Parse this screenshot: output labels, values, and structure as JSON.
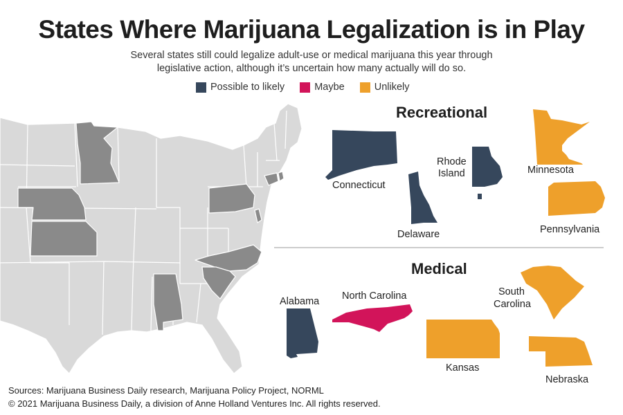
{
  "title": "States Where Marijuana Legalization is in Play",
  "subtitle_line1": "Several states still could legalize adult-use or medical marijuana this year through",
  "subtitle_line2": "legislative action, although it’s uncertain how many actually will do so.",
  "legend": [
    {
      "label": "Possible to likely",
      "color": "#36475c"
    },
    {
      "label": "Maybe",
      "color": "#d2145a"
    },
    {
      "label": "Unlikely",
      "color": "#eea02b"
    }
  ],
  "map_colors": {
    "base": "#d9d9d9",
    "highlight": "#8a8a8a",
    "border": "#ffffff"
  },
  "sections": {
    "recreational": "Recreational",
    "medical": "Medical"
  },
  "recreational_states": [
    {
      "name": "Connecticut",
      "status": "Possible to likely"
    },
    {
      "name": "Delaware",
      "status": "Possible to likely"
    },
    {
      "name": "Rhode Island",
      "line1": "Rhode",
      "line2": "Island",
      "status": "Possible to likely"
    },
    {
      "name": "Minnesota",
      "status": "Unlikely"
    },
    {
      "name": "Pennsylvania",
      "status": "Unlikely"
    }
  ],
  "medical_states": [
    {
      "name": "Alabama",
      "status": "Possible to likely"
    },
    {
      "name": "North Carolina",
      "status": "Maybe"
    },
    {
      "name": "South Carolina",
      "line1": "South",
      "line2": "Carolina",
      "status": "Unlikely"
    },
    {
      "name": "Kansas",
      "status": "Unlikely"
    },
    {
      "name": "Nebraska",
      "status": "Unlikely"
    }
  ],
  "footer": {
    "sources": "Sources: Marijuana Business Daily research, Marijuana Policy Project, NORML",
    "copyright": "© 2021 Marijuana Business Daily, a division of Anne Holland Ventures Inc. All rights reserved."
  }
}
